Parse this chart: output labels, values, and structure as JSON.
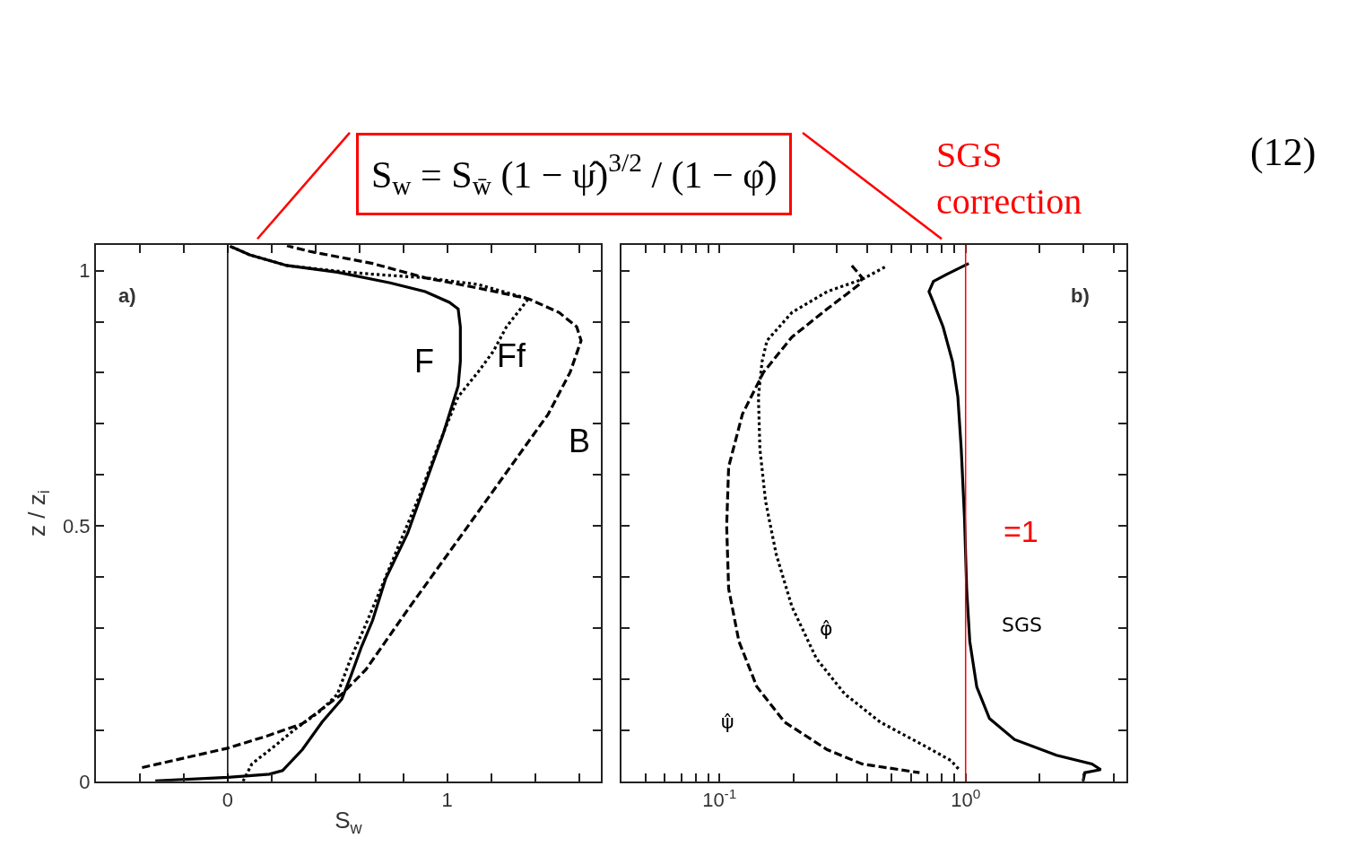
{
  "chart_data": [
    {
      "type": "line",
      "title": "S$_{w}$ = S$_{w̄}$ (1 − ψ̂)$^{3/2}$ / (1 − φ̂)",
      "xlabel": "S$_{w}$",
      "ylabel": "z / z$_{i}$",
      "annotations": [
        "(12)",
        "SGS correction",
        "a)"
      ],
      "marker": "none",
      "xlim": [
        -0.6,
        1.7
      ],
      "ylim": [
        0,
        1.05
      ],
      "xticks": [
        {
          "value": -0.4,
          "label": null
        },
        {
          "value": -0.2,
          "label": null
        },
        0,
        {
          "value": 0.2,
          "label": null
        },
        {
          "value": 0.4,
          "label": null
        },
        {
          "value": 0.6,
          "label": null
        },
        {
          "value": 0.8,
          "label": null
        },
        1,
        {
          "value": 1.2,
          "label": null
        },
        {
          "value": 1.4,
          "label": null
        },
        {
          "value": 1.6,
          "label": null
        }
      ],
      "yticks": [
        0,
        {
          "value": 0.1,
          "label": null
        },
        {
          "value": 0.2,
          "label": null
        },
        {
          "value": 0.3,
          "label": null
        },
        {
          "value": 0.4,
          "label": null
        },
        0.5,
        {
          "value": 0.6,
          "label": null
        },
        {
          "value": 0.7,
          "label": null
        },
        {
          "value": 0.8,
          "label": null
        },
        {
          "value": 0.9,
          "label": null
        },
        1
      ],
      "ref_lines": [
        {
          "axis": "x",
          "value": 0,
          "color": "#000000"
        }
      ],
      "series": [
        {
          "name": "F",
          "color": "#000000",
          "line_style": "solid",
          "x": [
            -0.33,
            0,
            0.19,
            0.25,
            0.34,
            0.43,
            0.52,
            0.56,
            0.61,
            0.66,
            0.72,
            0.82,
            0.9,
            0.98,
            1.05,
            1.06,
            1.06,
            1.05,
            1.01,
            0.9,
            0.74,
            0.5,
            0.27,
            0.1,
            0.01
          ],
          "values": [
            0.001,
            0.008,
            0.014,
            0.021,
            0.062,
            0.116,
            0.161,
            0.205,
            0.264,
            0.315,
            0.397,
            0.486,
            0.582,
            0.678,
            0.774,
            0.822,
            0.89,
            0.925,
            0.938,
            0.959,
            0.976,
            0.997,
            1.01,
            1.031,
            1.048
          ]
        },
        {
          "name": "Ff",
          "color": "#000000",
          "line_style": "dotted",
          "x": [
            0.07,
            0.11,
            0.21,
            0.31,
            0.42,
            0.5,
            0.56,
            0.63,
            0.71,
            0.79,
            0.87,
            0.96,
            1.05,
            1.14,
            1.21,
            1.27,
            1.37,
            1.14,
            0.9,
            0.66,
            0.5,
            0.27,
            0.1,
            0.01
          ],
          "values": [
            0,
            0.034,
            0.068,
            0.103,
            0.137,
            0.171,
            0.24,
            0.308,
            0.39,
            0.473,
            0.555,
            0.658,
            0.753,
            0.801,
            0.842,
            0.89,
            0.945,
            0.973,
            0.986,
            0.993,
            0.999,
            1.01,
            1.031,
            1.048
          ]
        },
        {
          "name": "B",
          "color": "#000000",
          "line_style": "dashed",
          "x": [
            -0.39,
            0,
            0.18,
            0.34,
            0.52,
            0.63,
            0.82,
            1.06,
            1.3,
            1.46,
            1.56,
            1.61,
            1.59,
            1.51,
            1.37,
            1.14,
            0.9,
            0.66,
            0.37,
            0.27
          ],
          "values": [
            0.027,
            0.065,
            0.089,
            0.113,
            0.171,
            0.219,
            0.336,
            0.479,
            0.623,
            0.719,
            0.801,
            0.863,
            0.89,
            0.918,
            0.945,
            0.966,
            0.986,
            1.014,
            1.038,
            1.049
          ]
        }
      ]
    },
    {
      "type": "line",
      "annotations": [
        "b)"
      ],
      "marker": "none",
      "log": "x",
      "tick_labels": "x",
      "xlim": [
        0.04,
        4.5
      ],
      "ylim": [
        0,
        1.05
      ],
      "xticks": [
        {
          "value": 0.05,
          "label": null
        },
        {
          "value": 0.06,
          "label": null
        },
        {
          "value": 0.07,
          "label": null
        },
        {
          "value": 0.08,
          "label": null
        },
        {
          "value": 0.09,
          "label": null
        },
        {
          "value": 0.1,
          "label": "10$^{-1}$"
        },
        {
          "value": 0.2,
          "label": null
        },
        {
          "value": 0.3,
          "label": null
        },
        {
          "value": 0.4,
          "label": null
        },
        {
          "value": 0.5,
          "label": null
        },
        {
          "value": 0.6,
          "label": null
        },
        {
          "value": 0.7,
          "label": null
        },
        {
          "value": 0.8,
          "label": null
        },
        {
          "value": 0.9,
          "label": null
        },
        {
          "value": 1,
          "label": "10$^{0}$"
        },
        {
          "value": 2,
          "label": null
        },
        {
          "value": 3,
          "label": null
        },
        {
          "value": 4,
          "label": null
        }
      ],
      "yticks": [
        {
          "value": 0,
          "label": null
        },
        {
          "value": 0.1,
          "label": null
        },
        {
          "value": 0.2,
          "label": null
        },
        {
          "value": 0.3,
          "label": null
        },
        {
          "value": 0.4,
          "label": null
        },
        {
          "value": 0.5,
          "label": null
        },
        {
          "value": 0.6,
          "label": null
        },
        {
          "value": 0.7,
          "label": null
        },
        {
          "value": 0.8,
          "label": null
        },
        {
          "value": 0.9,
          "label": null
        },
        {
          "value": 1,
          "label": null
        }
      ],
      "ref_lines": [
        {
          "axis": "x",
          "value": 1,
          "label": "=1",
          "color": "#ff0000"
        }
      ],
      "series": [
        {
          "name": "SGS",
          "color": "#000000",
          "line_style": "solid",
          "x": [
            1.03,
            0.84,
            0.74,
            0.71,
            0.74,
            0.81,
            0.885,
            0.93,
            0.96,
            0.99,
            1.01,
            1.04,
            1.11,
            1.25,
            1.58,
            2.34,
            3.26,
            3.54,
            3.05,
            3.0
          ],
          "values": [
            1.014,
            0.993,
            0.979,
            0.959,
            0.938,
            0.89,
            0.822,
            0.753,
            0.651,
            0.514,
            0.377,
            0.274,
            0.185,
            0.123,
            0.082,
            0.051,
            0.034,
            0.023,
            0.017,
            0
          ]
        },
        {
          "name": "ψ̂",
          "color": "#000000",
          "line_style": "dashed",
          "x": [
            0.345,
            0.38,
            0.37,
            0.274,
            0.197,
            0.151,
            0.124,
            0.109,
            0.107,
            0.109,
            0.12,
            0.142,
            0.184,
            0.274,
            0.38,
            0.65
          ],
          "values": [
            1.01,
            0.986,
            0.973,
            0.925,
            0.87,
            0.801,
            0.719,
            0.616,
            0.5,
            0.377,
            0.274,
            0.185,
            0.116,
            0.062,
            0.034,
            0.017
          ]
        },
        {
          "name": "φ̂",
          "color": "#000000",
          "line_style": "dotted",
          "x": [
            0.47,
            0.38,
            0.274,
            0.197,
            0.156,
            0.149,
            0.144,
            0.146,
            0.154,
            0.17,
            0.197,
            0.248,
            0.323,
            0.45,
            0.69,
            0.87,
            0.95
          ],
          "values": [
            1.007,
            0.983,
            0.959,
            0.918,
            0.863,
            0.822,
            0.753,
            0.651,
            0.548,
            0.445,
            0.342,
            0.24,
            0.171,
            0.116,
            0.068,
            0.041,
            0.021
          ]
        }
      ]
    }
  ]
}
